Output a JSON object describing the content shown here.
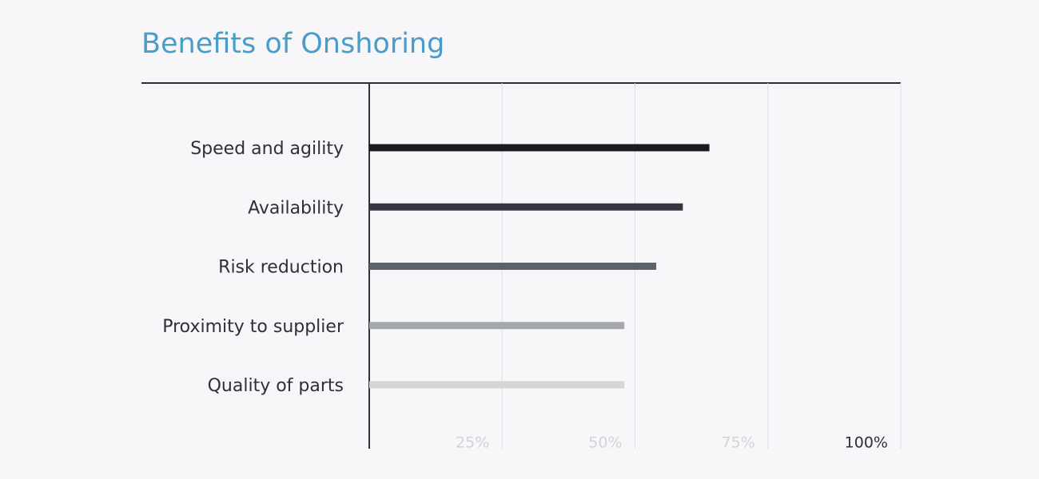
{
  "chart_data": {
    "type": "bar",
    "orientation": "horizontal",
    "title": "Benefits of Onshoring",
    "categories": [
      "Speed and agility",
      "Availability",
      "Risk reduction",
      "Proximity to supplier",
      "Quality of parts"
    ],
    "values": [
      64,
      59,
      54,
      48,
      48
    ],
    "colors": [
      "#1a1b22",
      "#343641",
      "#5d636b",
      "#a5a8ab",
      "#d3d5d6"
    ],
    "xlim": [
      0,
      100
    ],
    "xticks": [
      {
        "value": 25,
        "label": "25%"
      },
      {
        "value": 50,
        "label": "50%"
      },
      {
        "value": 75,
        "label": "75%"
      },
      {
        "value": 100,
        "label": "100%"
      }
    ],
    "grid": true
  }
}
